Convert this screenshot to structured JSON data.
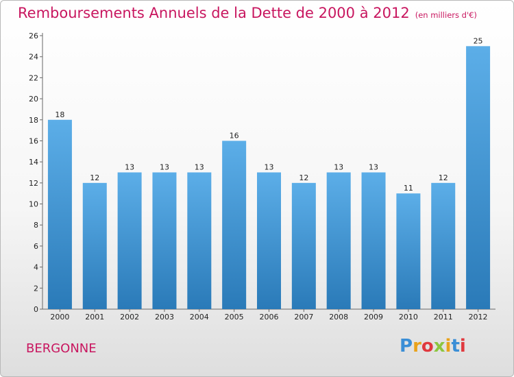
{
  "header": {
    "title": "Remboursements Annuels de la Dette de 2000 à 2012",
    "unit": "(en milliers d'€)"
  },
  "footer": {
    "commune": "BERGONNE",
    "logo": "Proxiti",
    "logo_letters": [
      {
        "ch": "P",
        "color": "#3a8ed6"
      },
      {
        "ch": "r",
        "color": "#e9a21b"
      },
      {
        "ch": "o",
        "color": "#e0393e"
      },
      {
        "ch": "x",
        "color": "#8cc63f"
      },
      {
        "ch": "i",
        "color": "#e9a21b"
      },
      {
        "ch": "t",
        "color": "#3a8ed6"
      },
      {
        "ch": "i",
        "color": "#e0393e"
      }
    ]
  },
  "colors": {
    "bar_top": "#5caee8",
    "bar_bottom": "#2a7ab8",
    "accent": "#c8165f"
  },
  "chart_data": {
    "type": "bar",
    "categories": [
      "2000",
      "2001",
      "2002",
      "2003",
      "2004",
      "2005",
      "2006",
      "2007",
      "2008",
      "2009",
      "2010",
      "2011",
      "2012"
    ],
    "values": [
      18,
      12,
      13,
      13,
      13,
      16,
      13,
      12,
      13,
      13,
      11,
      12,
      25
    ],
    "title": "Remboursements Annuels de la Dette de 2000 à 2012",
    "ylim": [
      0,
      26
    ],
    "yticks": [
      0,
      2,
      4,
      6,
      8,
      10,
      12,
      14,
      16,
      18,
      20,
      22,
      24,
      26
    ],
    "grid": false,
    "legend": "none"
  }
}
